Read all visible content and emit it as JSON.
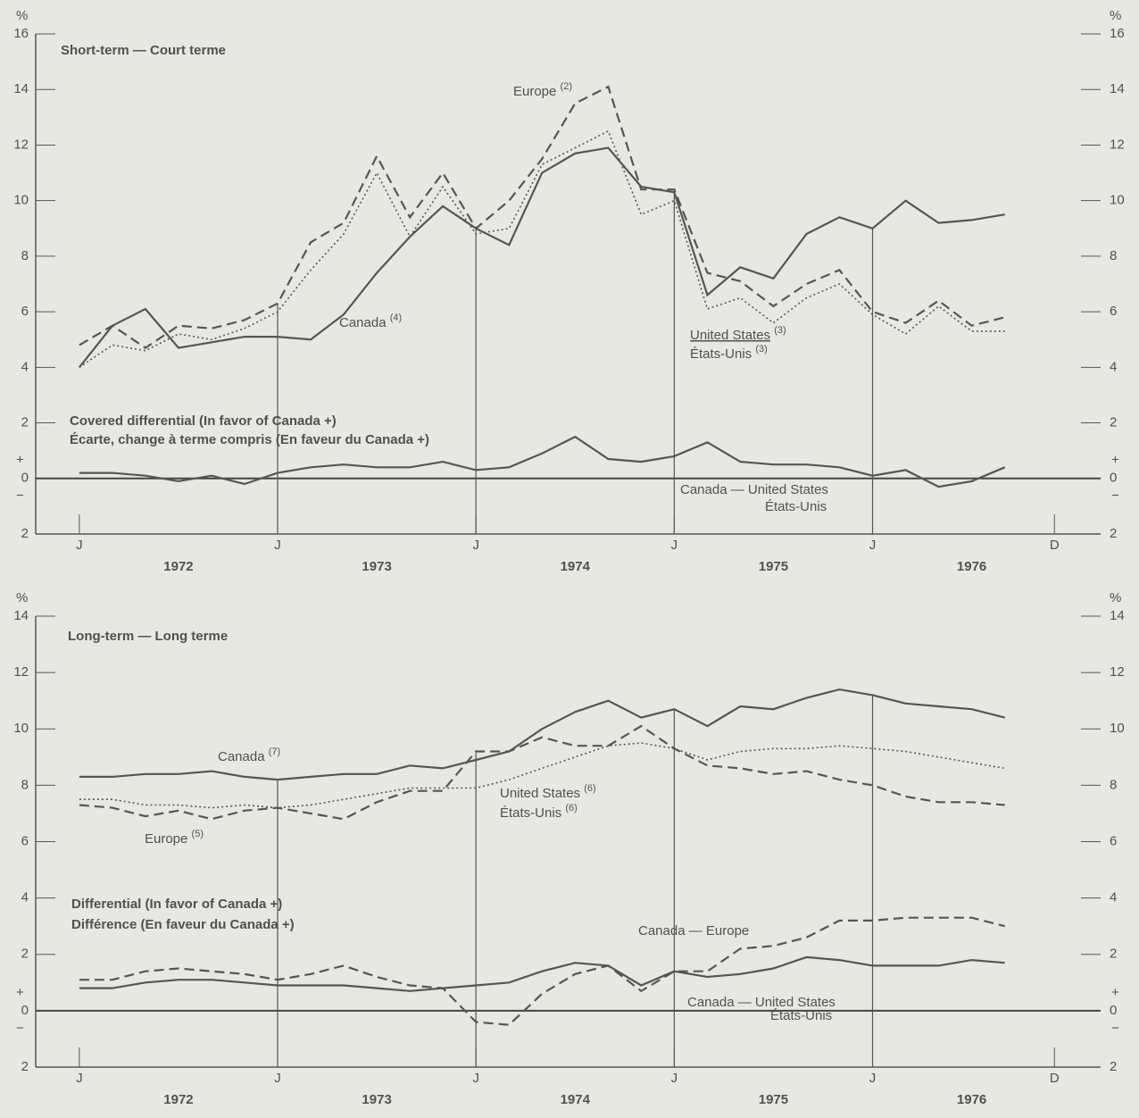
{
  "chart_data": [
    {
      "type": "line",
      "title": "Short-term — Court terme",
      "y_unit": "%",
      "x": [
        1972,
        1972.167,
        1972.333,
        1972.5,
        1972.667,
        1972.833,
        1973,
        1973.167,
        1973.333,
        1973.5,
        1973.667,
        1973.833,
        1974,
        1974.167,
        1974.333,
        1974.5,
        1974.667,
        1974.833,
        1975,
        1975.167,
        1975.333,
        1975.5,
        1975.667,
        1975.833,
        1976,
        1976.167,
        1976.333,
        1976.5,
        1976.667
      ],
      "xlim": [
        1971.78,
        1977.15
      ],
      "xticks": [
        {
          "value": 1972,
          "label": "J"
        },
        {
          "value": 1973,
          "label": "J"
        },
        {
          "value": 1974,
          "label": "J"
        },
        {
          "value": 1975,
          "label": "J"
        },
        {
          "value": 1976,
          "label": "J"
        },
        {
          "value": 1976.917,
          "label": "D"
        }
      ],
      "x_year_labels": [
        {
          "value": 1972.5,
          "label": "1972"
        },
        {
          "value": 1973.5,
          "label": "1973"
        },
        {
          "value": 1974.5,
          "label": "1974"
        },
        {
          "value": 1975.5,
          "label": "1975"
        },
        {
          "value": 1976.5,
          "label": "1976"
        }
      ],
      "ylim": [
        -2,
        16
      ],
      "yticks": [
        {
          "value": -2,
          "label": "2"
        },
        0,
        2,
        4,
        6,
        8,
        10,
        12,
        14,
        16
      ],
      "sign_labels": [
        "+",
        "−"
      ],
      "differential_title": [
        "Covered differential (In favor of Canada +)",
        "Écarte, change à terme compris (En faveur du Canada +)"
      ],
      "series": [
        {
          "name": "Canada",
          "note": "(4)",
          "color": "#555555",
          "line_style": "solid",
          "values": [
            4.0,
            5.5,
            6.1,
            4.7,
            4.9,
            5.1,
            5.1,
            5.0,
            5.9,
            7.4,
            8.7,
            9.8,
            9.0,
            8.4,
            11.0,
            11.7,
            11.9,
            10.5,
            10.3,
            6.6,
            7.6,
            7.2,
            8.8,
            9.4,
            9.0,
            10.0,
            9.2,
            9.3,
            9.5
          ]
        },
        {
          "name": "Europe",
          "note": "(2)",
          "color": "#555555",
          "line_style": "dashed",
          "values": [
            4.8,
            5.5,
            4.7,
            5.5,
            5.4,
            5.7,
            6.3,
            8.5,
            9.2,
            11.6,
            9.4,
            11.0,
            9.0,
            10.0,
            11.5,
            13.5,
            14.1,
            10.4,
            10.4,
            7.4,
            7.1,
            6.2,
            7.0,
            7.5,
            6.0,
            5.6,
            6.4,
            5.5,
            5.8
          ]
        },
        {
          "name": "United States",
          "name_fr": "États-Unis",
          "note": "(3)",
          "color": "#555555",
          "line_style": "dotted",
          "values": [
            4.0,
            4.8,
            4.6,
            5.2,
            5.0,
            5.4,
            6.0,
            7.5,
            8.8,
            11.0,
            8.7,
            10.5,
            8.8,
            9.0,
            11.3,
            11.9,
            12.5,
            9.5,
            10.0,
            6.1,
            6.5,
            5.6,
            6.5,
            7.0,
            5.9,
            5.2,
            6.2,
            5.3,
            5.3
          ]
        },
        {
          "name": "Canada — United States",
          "name_fr": "États-Unis",
          "color": "#555555",
          "line_style": "solid",
          "values": [
            0.2,
            0.2,
            0.1,
            -0.1,
            0.1,
            -0.2,
            0.2,
            0.4,
            0.5,
            0.4,
            0.4,
            0.6,
            0.3,
            0.4,
            0.9,
            1.5,
            0.7,
            0.6,
            0.8,
            1.3,
            0.6,
            0.5,
            0.5,
            0.4,
            0.1,
            0.3,
            -0.3,
            -0.1,
            0.4
          ]
        }
      ]
    },
    {
      "type": "line",
      "title": "Long-term — Long terme",
      "y_unit": "%",
      "x": [
        1972,
        1972.167,
        1972.333,
        1972.5,
        1972.667,
        1972.833,
        1973,
        1973.167,
        1973.333,
        1973.5,
        1973.667,
        1973.833,
        1974,
        1974.167,
        1974.333,
        1974.5,
        1974.667,
        1974.833,
        1975,
        1975.167,
        1975.333,
        1975.5,
        1975.667,
        1975.833,
        1976,
        1976.167,
        1976.333,
        1976.5,
        1976.667
      ],
      "xlim": [
        1971.78,
        1977.15
      ],
      "xticks": [
        {
          "value": 1972,
          "label": "J"
        },
        {
          "value": 1973,
          "label": "J"
        },
        {
          "value": 1974,
          "label": "J"
        },
        {
          "value": 1975,
          "label": "J"
        },
        {
          "value": 1976,
          "label": "J"
        },
        {
          "value": 1976.917,
          "label": "D"
        }
      ],
      "x_year_labels": [
        {
          "value": 1972.5,
          "label": "1972"
        },
        {
          "value": 1973.5,
          "label": "1973"
        },
        {
          "value": 1974.5,
          "label": "1974"
        },
        {
          "value": 1975.5,
          "label": "1975"
        },
        {
          "value": 1976.5,
          "label": "1976"
        }
      ],
      "ylim": [
        -2,
        14
      ],
      "yticks": [
        {
          "value": -2,
          "label": "2"
        },
        0,
        2,
        4,
        6,
        8,
        10,
        12,
        14
      ],
      "sign_labels": [
        "+",
        "−"
      ],
      "differential_title": [
        "Differential (In favor of Canada +)",
        "Différence (En faveur du Canada +)"
      ],
      "series": [
        {
          "name": "Canada",
          "note": "(7)",
          "color": "#555555",
          "line_style": "solid",
          "values": [
            8.3,
            8.3,
            8.4,
            8.4,
            8.5,
            8.3,
            8.2,
            8.3,
            8.4,
            8.4,
            8.7,
            8.6,
            8.9,
            9.2,
            10.0,
            10.6,
            11.0,
            10.4,
            10.7,
            10.1,
            10.8,
            10.7,
            11.1,
            11.4,
            11.2,
            10.9,
            10.8,
            10.7,
            10.4
          ]
        },
        {
          "name": "Europe",
          "note": "(5)",
          "color": "#555555",
          "line_style": "dashed",
          "values": [
            7.3,
            7.2,
            6.9,
            7.1,
            6.8,
            7.1,
            7.2,
            7.0,
            6.8,
            7.4,
            7.8,
            7.8,
            9.2,
            9.2,
            9.7,
            9.4,
            9.4,
            10.1,
            9.3,
            8.7,
            8.6,
            8.4,
            8.5,
            8.2,
            8.0,
            7.6,
            7.4,
            7.4,
            7.3
          ]
        },
        {
          "name": "United States",
          "name_fr": "États-Unis",
          "note": "(6)",
          "color": "#555555",
          "line_style": "dotted",
          "values": [
            7.5,
            7.5,
            7.3,
            7.3,
            7.2,
            7.3,
            7.2,
            7.3,
            7.5,
            7.7,
            7.9,
            7.9,
            7.9,
            8.2,
            8.6,
            9.0,
            9.4,
            9.5,
            9.3,
            8.9,
            9.2,
            9.3,
            9.3,
            9.4,
            9.3,
            9.2,
            9.0,
            8.8,
            8.6
          ]
        },
        {
          "name": "Canada — Europe",
          "color": "#555555",
          "line_style": "dashed",
          "values": [
            1.1,
            1.1,
            1.4,
            1.5,
            1.4,
            1.3,
            1.1,
            1.3,
            1.6,
            1.2,
            0.9,
            0.8,
            -0.4,
            -0.5,
            0.6,
            1.3,
            1.6,
            0.7,
            1.4,
            1.4,
            2.2,
            2.3,
            2.6,
            3.2,
            3.2,
            3.3,
            3.3,
            3.3,
            3.0
          ]
        },
        {
          "name": "Canada — United States",
          "name_fr": "États-Unis",
          "color": "#555555",
          "line_style": "solid",
          "values": [
            0.8,
            0.8,
            1.0,
            1.1,
            1.1,
            1.0,
            0.9,
            0.9,
            0.9,
            0.8,
            0.7,
            0.8,
            0.9,
            1.0,
            1.4,
            1.7,
            1.6,
            0.9,
            1.4,
            1.2,
            1.3,
            1.5,
            1.9,
            1.8,
            1.6,
            1.6,
            1.6,
            1.8,
            1.7
          ]
        }
      ]
    }
  ]
}
